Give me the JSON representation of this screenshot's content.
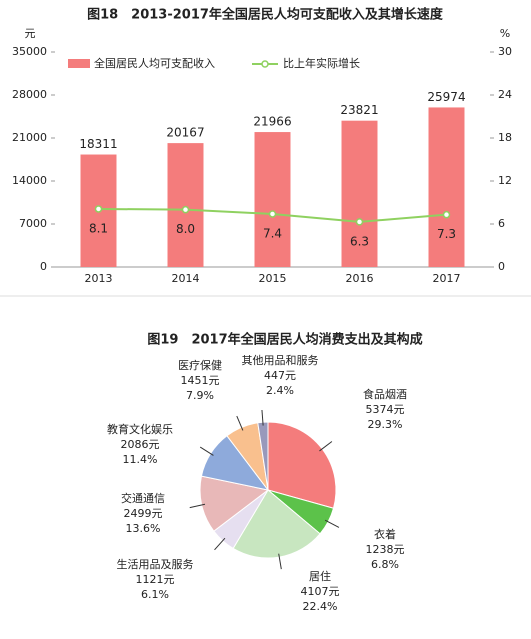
{
  "chart_data": [
    {
      "type": "bar",
      "title": "图18　2013-2017年全国居民人均可支配收入及其增长速度",
      "y_label": "元",
      "y2_label": "%",
      "categories": [
        "2013",
        "2014",
        "2015",
        "2016",
        "2017"
      ],
      "series": [
        {
          "name": "全国居民人均可支配收入",
          "color": "#f47c7c",
          "values": [
            18311,
            20167,
            21966,
            23821,
            25974
          ]
        },
        {
          "name": "比上年实际增长",
          "color": "#8fd160",
          "axis": "y2",
          "values": [
            8.1,
            8.0,
            7.4,
            6.3,
            7.3
          ],
          "value_labels": [
            "8.1",
            "8.0",
            "7.4",
            "6.3",
            "7.3"
          ]
        }
      ],
      "ylim": [
        0,
        35000
      ],
      "yticks": [
        0,
        7000,
        14000,
        21000,
        28000,
        35000
      ],
      "y2lim": [
        0,
        30
      ],
      "y2ticks": [
        0,
        6,
        12,
        18,
        24,
        30
      ],
      "legend": "top"
    },
    {
      "type": "pie",
      "title": "图19　2017年全国居民人均消费支出及其构成",
      "categories": [
        "食品烟酒",
        "衣着",
        "居住",
        "生活用品及服务",
        "交通通信",
        "教育文化娱乐",
        "医疗保健",
        "其他用品和服务"
      ],
      "values": [
        29.3,
        6.8,
        22.4,
        6.1,
        13.6,
        11.4,
        7.9,
        2.4
      ],
      "value_labels": [
        "29.3%",
        "6.8%",
        "22.4%",
        "6.1%",
        "13.6%",
        "11.4%",
        "7.9%",
        "2.4%"
      ],
      "amounts": [
        5374,
        1238,
        4107,
        1121,
        2499,
        2086,
        1451,
        447
      ],
      "amount_labels": [
        "5374元",
        "1238元",
        "4107元",
        "1121元",
        "2499元",
        "2086元",
        "1451元",
        "447元"
      ],
      "colors": [
        "#f47c7c",
        "#5cc24a",
        "#c8e6c0",
        "#e6dff0",
        "#e8b8b8",
        "#8eaadb",
        "#f9c08e",
        "#9999bb"
      ]
    }
  ]
}
